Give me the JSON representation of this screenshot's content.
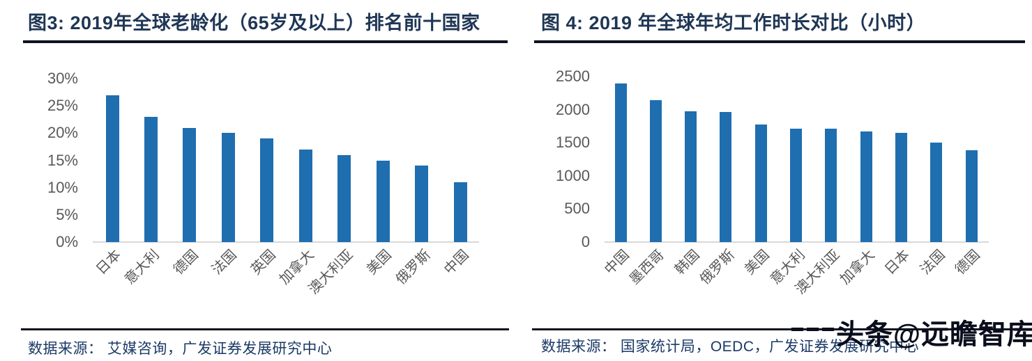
{
  "colors": {
    "bar": "#1F6EB0",
    "title_text": "#1F3655",
    "rule": "#0C1220",
    "axis_label": "#595959",
    "axis_line": "#D8D8D8",
    "source_text": "#1B3A66",
    "watermark_text": "#0A0E1C"
  },
  "panels": [
    {
      "title": "图3:  2019年全球老龄化（65岁及以上）排名前十国家",
      "source": "数据来源：  艾媒咨询，广发证券发展研究中心"
    },
    {
      "title": "图 4:  2019 年全球年均工作时长对比（小时）",
      "source": "数据来源：  国家统计局，OEDC，广发证券发展研究中心"
    }
  ],
  "watermark": {
    "text": "头条@远瞻智库"
  },
  "chart_data": [
    {
      "type": "bar",
      "title": "2019年全球老龄化（65岁及以上）排名前十国家",
      "categories": [
        "日本",
        "意大利",
        "德国",
        "法国",
        "英国",
        "加拿大",
        "澳大利亚",
        "美国",
        "俄罗斯",
        "中国"
      ],
      "values": [
        27,
        23,
        21,
        20,
        19,
        17,
        16,
        15,
        14,
        11
      ],
      "unit": "%",
      "xlabel": "",
      "ylabel": "",
      "ylim": [
        0,
        30
      ],
      "ytick_step": 5,
      "ytick_labels": [
        "0%",
        "5%",
        "10%",
        "15%",
        "20%",
        "25%",
        "30%"
      ],
      "grid": false,
      "legend": "none",
      "bar_color": "#1F6EB0"
    },
    {
      "type": "bar",
      "title": "2019 年全球年均工作时长对比（小时）",
      "categories": [
        "中国",
        "墨西哥",
        "韩国",
        "俄罗斯",
        "美国",
        "意大利",
        "澳大利亚",
        "加拿大",
        "日本",
        "法国",
        "德国"
      ],
      "values": [
        2400,
        2140,
        1970,
        1965,
        1780,
        1715,
        1710,
        1670,
        1645,
        1505,
        1385
      ],
      "unit": "小时",
      "xlabel": "",
      "ylabel": "",
      "ylim": [
        0,
        2500
      ],
      "ytick_step": 500,
      "ytick_labels": [
        "0",
        "500",
        "1000",
        "1500",
        "2000",
        "2500"
      ],
      "grid": false,
      "legend": "none",
      "bar_color": "#1F6EB0"
    }
  ]
}
